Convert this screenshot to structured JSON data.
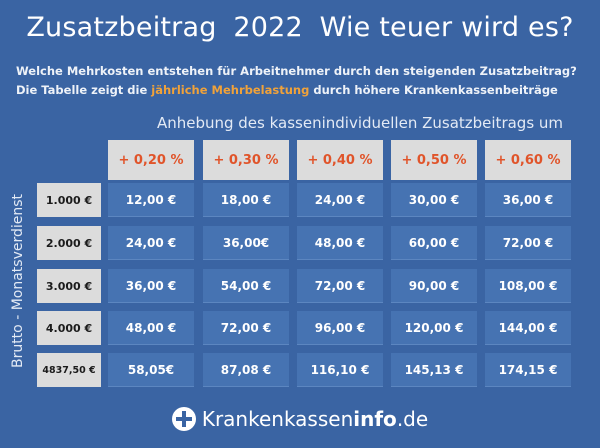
{
  "title": {
    "part1": "Zusatzbeitrag",
    "year": "2022",
    "part2": "Wie teuer wird es?"
  },
  "subtitle": {
    "line1": "Welche Mehrkosten entstehen für Arbeitnehmer durch den steigenden Zusatzbeitrag?",
    "line2_pre": "Die Tabelle zeigt die ",
    "line2_hl": "jährliche Mehrbelastung",
    "line2_post": " durch höhere Krankenkassenbeiträge"
  },
  "table": {
    "column_caption": "Anhebung des kassenindividuellen Zusatzbeitrags um",
    "row_caption": "Brutto - Monatsverdienst",
    "headers": [
      "+ 0,20 %",
      "+ 0,30 %",
      "+ 0,40 %",
      "+ 0,50 %",
      "+ 0,60 %"
    ],
    "rows": [
      {
        "label": "1.000 €",
        "values": [
          "12,00 €",
          "18,00 €",
          "24,00 €",
          "30,00 €",
          "36,00 €"
        ]
      },
      {
        "label": "2.000 €",
        "values": [
          "24,00 €",
          "36,00€",
          "48,00 €",
          "60,00 €",
          "72,00 €"
        ]
      },
      {
        "label": "3.000 €",
        "values": [
          "36,00 €",
          "54,00 €",
          "72,00 €",
          "90,00 €",
          "108,00 €"
        ]
      },
      {
        "label": "4.000 €",
        "values": [
          "48,00 €",
          "72,00 €",
          "96,00 €",
          "120,00 €",
          "144,00 €"
        ]
      },
      {
        "label": "4837,50 €",
        "values": [
          "58,05€",
          "87,08 €",
          "116,10 €",
          "145,13 €",
          "174,15 €"
        ]
      }
    ]
  },
  "logo": {
    "part1": "Krankenkassen",
    "part2": "info",
    "part3": ".de"
  },
  "colors": {
    "background": "#3a64a3",
    "highlight": "#f0a23a",
    "header_text": "#e0542a",
    "cell": "#4673b2",
    "header_bg": "#dcdcdc"
  }
}
